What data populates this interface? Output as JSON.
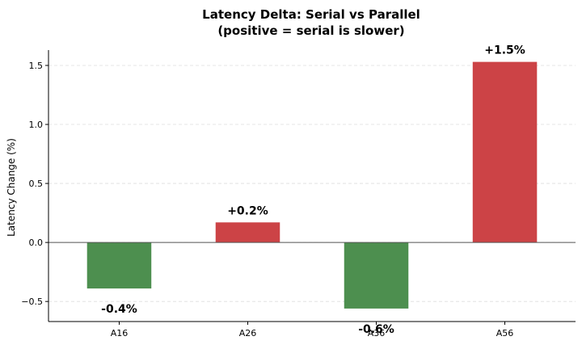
{
  "chart_data": {
    "type": "bar",
    "title": "Latency Delta: Serial vs Parallel",
    "subtitle": "(positive = serial is slower)",
    "xlabel": "",
    "ylabel": "Latency Change (%)",
    "categories": [
      "A16",
      "A26",
      "A36",
      "A56"
    ],
    "values": [
      -0.39,
      0.17,
      -0.56,
      1.53
    ],
    "data_labels": [
      "-0.4%",
      "+0.2%",
      "-0.6%",
      "+1.5%"
    ],
    "yticks": [
      -0.5,
      0.0,
      0.5,
      1.0,
      1.5
    ],
    "ytick_labels": [
      "−0.5",
      "0.0",
      "0.5",
      "1.0",
      "1.5"
    ],
    "ylim": [
      -0.67,
      1.63
    ],
    "grid": "horizontal dashed",
    "colors": {
      "positive": "#cc4346",
      "negative": "#4d8f4f",
      "zero_line": "#555555",
      "axis": "#000000",
      "grid": "#dddddd"
    }
  }
}
